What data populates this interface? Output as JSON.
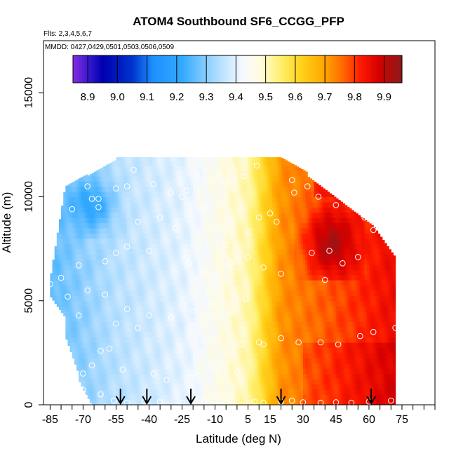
{
  "chart_data": {
    "type": "heatmap",
    "title": "ATOM4 Southbound SF6_CCGG_PFP",
    "subtitle_flights": "Flts: 2,3,4,5,6,7",
    "subtitle_dates": "MMDD: 0427,0429,0501,0503,0506,0509",
    "xlabel": "Latitude (deg N)",
    "ylabel": "Altitude (m)",
    "xlim": [
      -88,
      90
    ],
    "ylim": [
      0,
      17500
    ],
    "x_ticks": [
      "-85",
      "-70",
      "-55",
      "-40",
      "-25",
      "-10",
      "5",
      "15",
      "30",
      "45",
      "60",
      "75"
    ],
    "x_tick_values": [
      -85,
      -70,
      -55,
      -40,
      -25,
      -10,
      5,
      15,
      30,
      45,
      60,
      75
    ],
    "x_minor_step": 5,
    "y_ticks": [
      "0",
      "5000",
      "10000",
      "15000"
    ],
    "y_tick_values": [
      0,
      5000,
      10000,
      15000
    ],
    "colorbar": {
      "label_values": [
        "8.9",
        "9.0",
        "9.1",
        "9.2",
        "9.3",
        "9.4",
        "9.5",
        "9.6",
        "9.7",
        "9.8",
        "9.9"
      ],
      "min": 8.85,
      "max": 9.96,
      "boundaries": [
        8.9,
        9.0,
        9.1,
        9.2,
        9.3,
        9.4,
        9.5,
        9.6,
        9.7,
        9.8,
        9.9
      ],
      "color_stops": [
        {
          "v": 8.85,
          "c": "#8a2be2"
        },
        {
          "v": 8.9,
          "c": "#3a1ad0"
        },
        {
          "v": 8.95,
          "c": "#0000b0"
        },
        {
          "v": 9.05,
          "c": "#0033cc"
        },
        {
          "v": 9.12,
          "c": "#1e90ff"
        },
        {
          "v": 9.22,
          "c": "#33aaff"
        },
        {
          "v": 9.32,
          "c": "#9fd6ff"
        },
        {
          "v": 9.42,
          "c": "#f4f9ff"
        },
        {
          "v": 9.48,
          "c": "#fffbe0"
        },
        {
          "v": 9.55,
          "c": "#fff06e"
        },
        {
          "v": 9.62,
          "c": "#ffd21a"
        },
        {
          "v": 9.7,
          "c": "#ffa500"
        },
        {
          "v": 9.76,
          "c": "#ff6a00"
        },
        {
          "v": 9.82,
          "c": "#ff1a00"
        },
        {
          "v": 9.88,
          "c": "#d60000"
        },
        {
          "v": 9.96,
          "c": "#8b1a1a"
        }
      ]
    },
    "field_extent": {
      "lat_min": -85,
      "lat_max": 72,
      "alt_max": 12000
    },
    "arrow_latitudes": [
      -53,
      -41,
      -21,
      20,
      61
    ],
    "sample_points": [
      [
        -82,
        9400
      ],
      [
        -75,
        9400
      ],
      [
        -68,
        10500
      ],
      [
        -66,
        9900
      ],
      [
        -63,
        9900
      ],
      [
        -63,
        9500
      ],
      [
        -55,
        10400
      ],
      [
        -50,
        10500
      ],
      [
        -47,
        11300
      ],
      [
        -38,
        10600
      ],
      [
        -30,
        10200
      ],
      [
        -25,
        10000
      ],
      [
        -23,
        10300
      ],
      [
        -18,
        11000
      ],
      [
        -8,
        11000
      ],
      [
        -5,
        10700
      ],
      [
        3,
        11000
      ],
      [
        9,
        11500
      ],
      [
        25,
        10800
      ],
      [
        26,
        10200
      ],
      [
        32,
        10500
      ],
      [
        37,
        10000
      ],
      [
        55,
        9900
      ],
      [
        62,
        8400
      ],
      [
        15,
        9200
      ],
      [
        18,
        8800
      ],
      [
        34,
        7300
      ],
      [
        42,
        7400
      ],
      [
        48,
        6800
      ],
      [
        55,
        7100
      ],
      [
        40,
        6000
      ],
      [
        20,
        6300
      ],
      [
        12,
        6600
      ],
      [
        5,
        7100
      ],
      [
        -5,
        7700
      ],
      [
        -3,
        6800
      ],
      [
        -10,
        6100
      ],
      [
        -15,
        6400
      ],
      [
        -22,
        6800
      ],
      [
        -40,
        7400
      ],
      [
        -50,
        7600
      ],
      [
        -55,
        7300
      ],
      [
        -60,
        6900
      ],
      [
        -72,
        6700
      ],
      [
        -80,
        6100
      ],
      [
        -68,
        5500
      ],
      [
        -60,
        5300
      ],
      [
        -50,
        4600
      ],
      [
        -55,
        3900
      ],
      [
        -45,
        3700
      ],
      [
        -40,
        4300
      ],
      [
        -30,
        4200
      ],
      [
        -20,
        4500
      ],
      [
        -12,
        4800
      ],
      [
        -2,
        4500
      ],
      [
        4,
        5100
      ],
      [
        10,
        3000
      ],
      [
        20,
        3200
      ],
      [
        12,
        2900
      ],
      [
        28,
        3000
      ],
      [
        38,
        3000
      ],
      [
        46,
        2900
      ],
      [
        56,
        3300
      ],
      [
        62,
        3500
      ],
      [
        72,
        3700
      ],
      [
        -62,
        2600
      ],
      [
        -58,
        2700
      ],
      [
        -66,
        1900
      ],
      [
        -70,
        1500
      ],
      [
        -52,
        1700
      ],
      [
        -38,
        1500
      ],
      [
        -32,
        1200
      ],
      [
        -20,
        1500
      ],
      [
        -10,
        1800
      ],
      [
        0,
        1600
      ],
      [
        -75,
        600
      ],
      [
        -70,
        700
      ],
      [
        -62,
        500
      ],
      [
        -56,
        200
      ],
      [
        -50,
        100
      ],
      [
        -42,
        150
      ],
      [
        -35,
        120
      ],
      [
        -25,
        100
      ],
      [
        -15,
        150
      ],
      [
        -5,
        120
      ],
      [
        8,
        150
      ],
      [
        12,
        100
      ],
      [
        20,
        150
      ],
      [
        25,
        200
      ],
      [
        30,
        120
      ],
      [
        38,
        100
      ],
      [
        45,
        120
      ],
      [
        52,
        100
      ],
      [
        60,
        150
      ],
      [
        70,
        200
      ],
      [
        -85,
        5800
      ],
      [
        -77,
        5200
      ],
      [
        -72,
        4300
      ],
      [
        2,
        2900
      ],
      [
        -28,
        8500
      ],
      [
        -35,
        9000
      ],
      [
        -45,
        8800
      ],
      [
        5,
        8300
      ],
      [
        10,
        9000
      ],
      [
        -15,
        9500
      ],
      [
        45,
        9600
      ],
      [
        58,
        9000
      ]
    ]
  }
}
